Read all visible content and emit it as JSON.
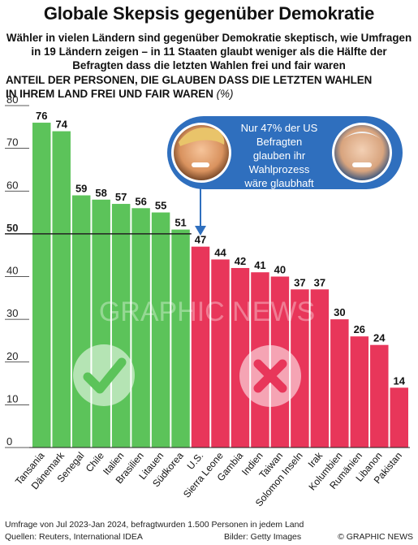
{
  "header": {
    "title": "Globale Skepsis gegenüber Demokratie",
    "subtitle_lines": [
      "Wähler in vielen Ländern sind gegenüber Demokratie skeptisch, wie Umfragen",
      "in 19 Ländern zeigen – in 11 Staaten glaubt weniger als die Hälfte der",
      "Befragten dass die letzten Wahlen frei und fair waren"
    ]
  },
  "axis_title": {
    "line1": "ANTEIL DER PERSONEN, DIE GLAUBEN DASS DIE LETZTEN WAHLEN",
    "line2": "IN IHREM LAND FREI UND FAIR WAREN",
    "unit": "(%)"
  },
  "callout": {
    "lines": [
      "Nur 47% der US",
      "Befragten",
      "glauben ihr",
      "Wahlprozess",
      "wäre glaubhaft"
    ]
  },
  "watermark": "GRAPHIC NEWS",
  "footer": {
    "note": "Umfrage von Jul 2023-Jan 2024, befragtwurden 1.500 Personen in jedem Land",
    "sources": "Quellen: Reuters, International IDEA",
    "pictures": "Bilder: Getty Images",
    "brand": "© GRAPHIC NEWS"
  },
  "colors": {
    "green": "#5cc35a",
    "red": "#e8365a",
    "callout_blue": "#2f6fbe",
    "axis": "#222222"
  },
  "icons": {
    "positive": "check-icon",
    "negative": "cross-icon"
  },
  "chart_data": {
    "type": "bar",
    "categories": [
      "Tansania",
      "Dänemark",
      "Senegal",
      "Chile",
      "Italien",
      "Brasilien",
      "Litauen",
      "Südkorea",
      "U.S.",
      "Sierra Leone",
      "Gambia",
      "Indien",
      "Taiwan",
      "Solomon Inseln",
      "Irak",
      "Kolumbien",
      "Rumänien",
      "Libanon",
      "Pakistan"
    ],
    "values": [
      76,
      74,
      59,
      58,
      57,
      56,
      55,
      51,
      47,
      44,
      42,
      41,
      40,
      37,
      37,
      30,
      26,
      24,
      14
    ],
    "value_labels": [
      "76",
      "74",
      "59",
      "58",
      "57",
      "56",
      "55",
      "51",
      "47",
      "44",
      "42",
      "41",
      "40",
      "37",
      "37",
      "30",
      "26",
      "24",
      "14"
    ],
    "threshold": 50,
    "yticks": [
      0,
      10,
      20,
      30,
      40,
      50,
      60,
      70,
      80
    ],
    "ylim": [
      0,
      80
    ],
    "grid": false,
    "legend": "none"
  }
}
